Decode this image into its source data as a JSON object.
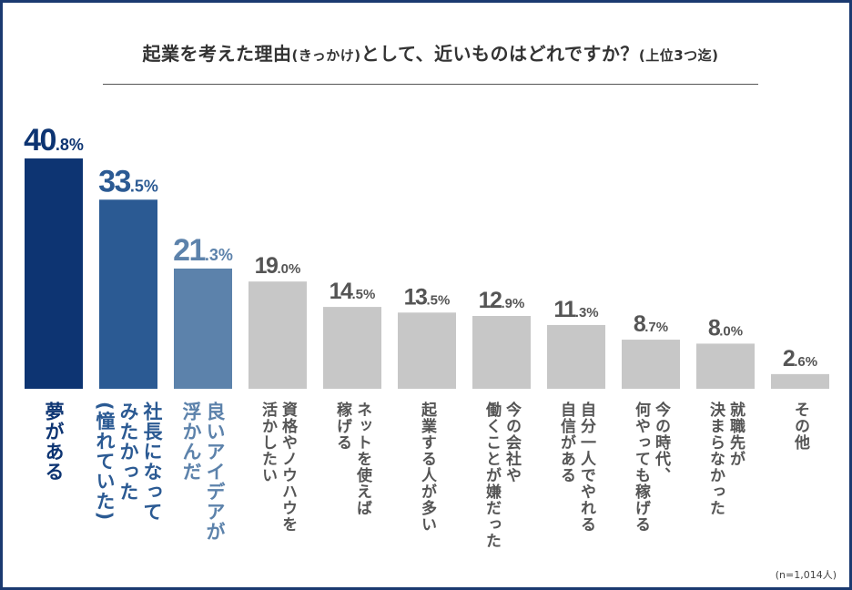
{
  "chart_data": {
    "type": "bar",
    "title": "起業を考えた理由",
    "title_paren": "(きっかけ)",
    "title_rest": "として、近いものはどれですか？",
    "title_suffix": "(上位3つ迄)",
    "xlabel": "",
    "ylabel": "",
    "ylim": [
      0,
      45
    ],
    "unit": "%",
    "grid": false,
    "legend": "none",
    "categories": [
      [
        "夢がある"
      ],
      [
        "社長になって",
        "みたかった",
        "(憧れていた)"
      ],
      [
        "良いアイデアが",
        "浮かんだ"
      ],
      [
        "資格やノウハウを",
        "活かしたい"
      ],
      [
        "ネットを使えば",
        "稼げる"
      ],
      [
        "起業する人が多い"
      ],
      [
        "今の会社や",
        "働くことが嫌だった"
      ],
      [
        "自分一人でやれる",
        "自信がある"
      ],
      [
        "今の時代、",
        "何やっても稼げる"
      ],
      [
        "就職先が",
        "決まらなかった"
      ],
      [
        "その他"
      ]
    ],
    "values": [
      40.8,
      33.5,
      21.3,
      19.0,
      14.5,
      13.5,
      12.9,
      11.3,
      8.7,
      8.0,
      2.6
    ],
    "bar_colors": [
      "#0d3472",
      "#2b5a93",
      "#5c82ab",
      "#c7c7c7",
      "#c7c7c7",
      "#c7c7c7",
      "#c7c7c7",
      "#c7c7c7",
      "#c7c7c7",
      "#c7c7c7",
      "#c7c7c7"
    ],
    "label_colors": [
      "#0d3472",
      "#2b5a93",
      "#5c82ab",
      "#555555",
      "#555555",
      "#555555",
      "#555555",
      "#555555",
      "#555555",
      "#555555",
      "#555555"
    ]
  },
  "footnote": "(n=1,014人)"
}
